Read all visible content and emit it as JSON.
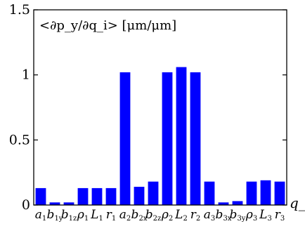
{
  "chart_data": {
    "type": "bar",
    "annotation": "<∂p_y/∂q_i> [μm/μm]",
    "xlabel": "q_i",
    "ylabel": "",
    "ylim": [
      0,
      1.5
    ],
    "yticks": [
      0,
      0.5,
      1,
      1.5
    ],
    "ytick_labels": [
      "0",
      "0.5",
      "1",
      "1.5"
    ],
    "bar_color": "#0000ff",
    "grid": false,
    "categories": [
      {
        "main": "a",
        "sub": "1"
      },
      {
        "main": "b",
        "sub": "1y"
      },
      {
        "main": "b",
        "sub": "1z"
      },
      {
        "main": "ρ",
        "sub": "1"
      },
      {
        "main": "L",
        "sub": "1"
      },
      {
        "main": "r",
        "sub": "1"
      },
      {
        "main": "a",
        "sub": "2"
      },
      {
        "main": "b",
        "sub": "2x"
      },
      {
        "main": "b",
        "sub": "2z"
      },
      {
        "main": "ρ",
        "sub": "2"
      },
      {
        "main": "L",
        "sub": "2"
      },
      {
        "main": "r",
        "sub": "2"
      },
      {
        "main": "a",
        "sub": "3"
      },
      {
        "main": "b",
        "sub": "3x"
      },
      {
        "main": "b",
        "sub": "3y"
      },
      {
        "main": "ρ",
        "sub": "3"
      },
      {
        "main": "L",
        "sub": "3"
      },
      {
        "main": "r",
        "sub": "3"
      }
    ],
    "values": [
      0.13,
      0.02,
      0.02,
      0.13,
      0.13,
      0.13,
      1.02,
      0.14,
      0.18,
      1.02,
      1.06,
      1.02,
      0.18,
      0.02,
      0.03,
      0.18,
      0.19,
      0.18
    ]
  }
}
